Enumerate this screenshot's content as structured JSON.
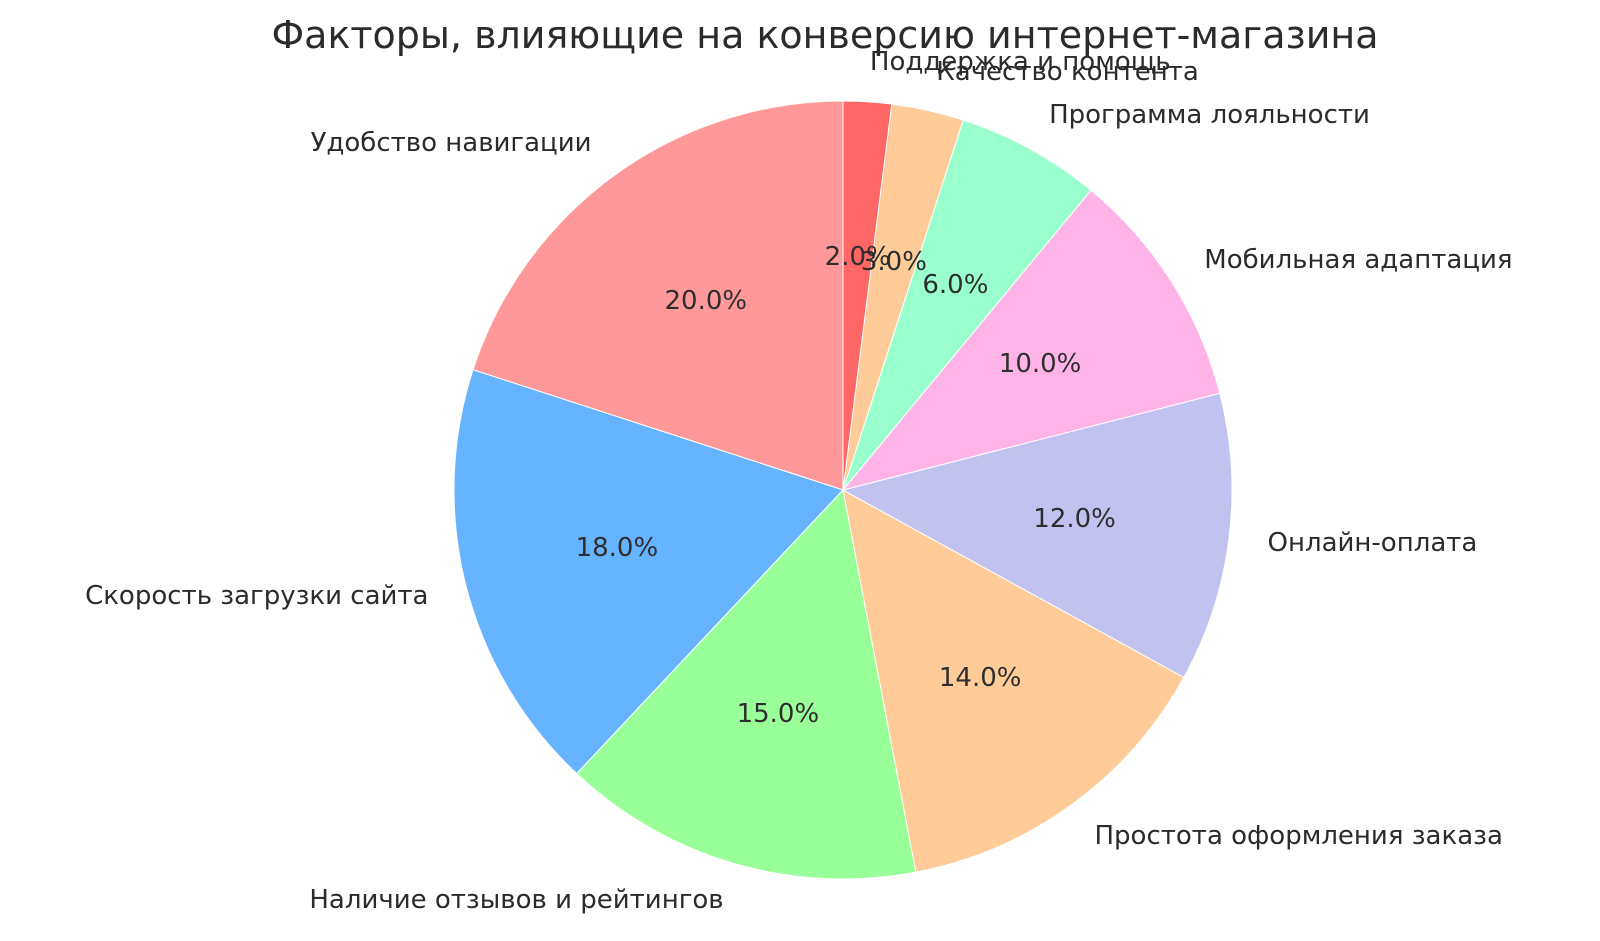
{
  "chart_data": {
    "type": "pie",
    "title": "Факторы, влияющие на конверсию интернет-магазина",
    "legend": "none",
    "start_angle_deg": 90,
    "counterclockwise": true,
    "label_distance": 1.1,
    "pct_distance": 0.6,
    "segments": [
      {
        "label": "Удобство навигации",
        "value": 20.0,
        "pct_label": "20.0%",
        "color": "#ff9999"
      },
      {
        "label": "Скорость загрузки сайта",
        "value": 18.0,
        "pct_label": "18.0%",
        "color": "#66b3ff"
      },
      {
        "label": "Наличие отзывов и рейтингов",
        "value": 15.0,
        "pct_label": "15.0%",
        "color": "#99ff99"
      },
      {
        "label": "Простота оформления заказа",
        "value": 14.0,
        "pct_label": "14.0%",
        "color": "#ffcc99"
      },
      {
        "label": "Онлайн-оплата",
        "value": 12.0,
        "pct_label": "12.0%",
        "color": "#c2c2f0"
      },
      {
        "label": "Мобильная адаптация",
        "value": 10.0,
        "pct_label": "10.0%",
        "color": "#ffb3e6"
      },
      {
        "label": "Программа лояльности",
        "value": 6.0,
        "pct_label": "6.0%",
        "color": "#99ffcc"
      },
      {
        "label": "Качество контента",
        "value": 3.0,
        "pct_label": "3.0%",
        "color": "#ffcc99"
      },
      {
        "label": "Поддержка и помощь",
        "value": 2.0,
        "pct_label": "2.0%",
        "color": "#ff6666"
      }
    ]
  }
}
